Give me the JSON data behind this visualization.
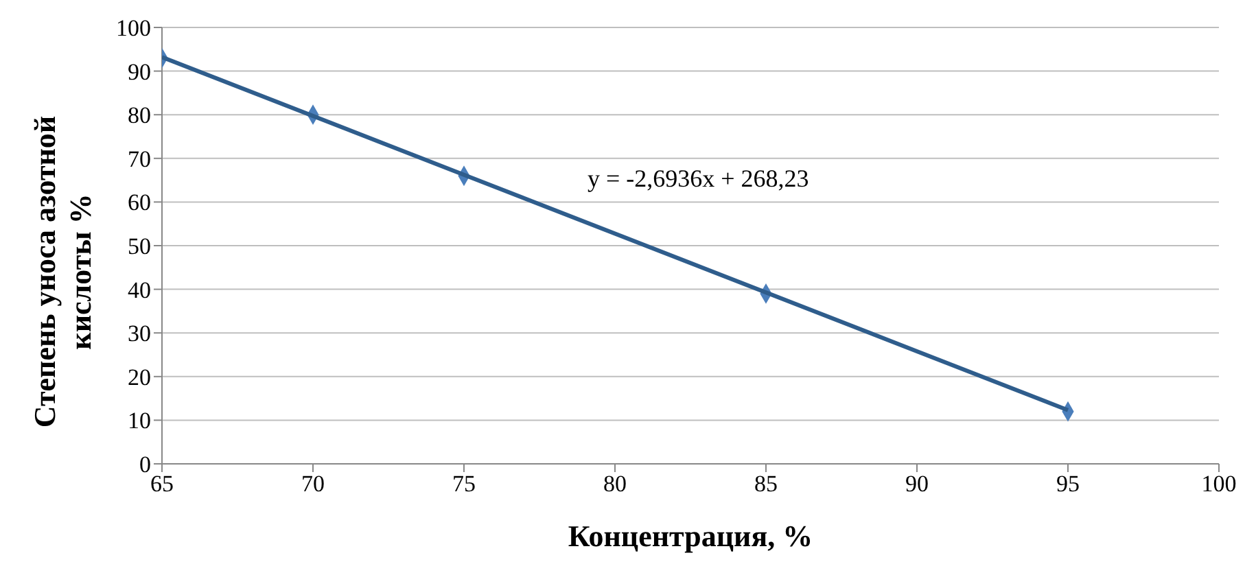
{
  "chart_data": {
    "type": "scatter",
    "xlabel": "Концентрация,  %",
    "ylabel": "Степень уноса азотной кислоты %",
    "x": [
      65,
      70,
      75,
      85,
      95
    ],
    "series": [
      {
        "color": "#4a7ebb",
        "values": [
          93,
          80,
          66,
          39,
          12
        ],
        "marker": "diamond"
      },
      {
        "type": "line",
        "color": "#2f5d8c",
        "x": [
          65,
          95
        ],
        "values": [
          93.2,
          12.3
        ],
        "marker": "none"
      }
    ],
    "annotations": [
      "y = -2,6936x + 268,23"
    ],
    "xlim": [
      65,
      100
    ],
    "xticks": [
      65,
      70,
      75,
      80,
      85,
      90,
      95,
      100
    ],
    "ylim": [
      0,
      100
    ],
    "yticks": [
      0,
      10,
      20,
      30,
      40,
      50,
      60,
      70,
      80,
      90,
      100
    ],
    "grid": "y"
  }
}
